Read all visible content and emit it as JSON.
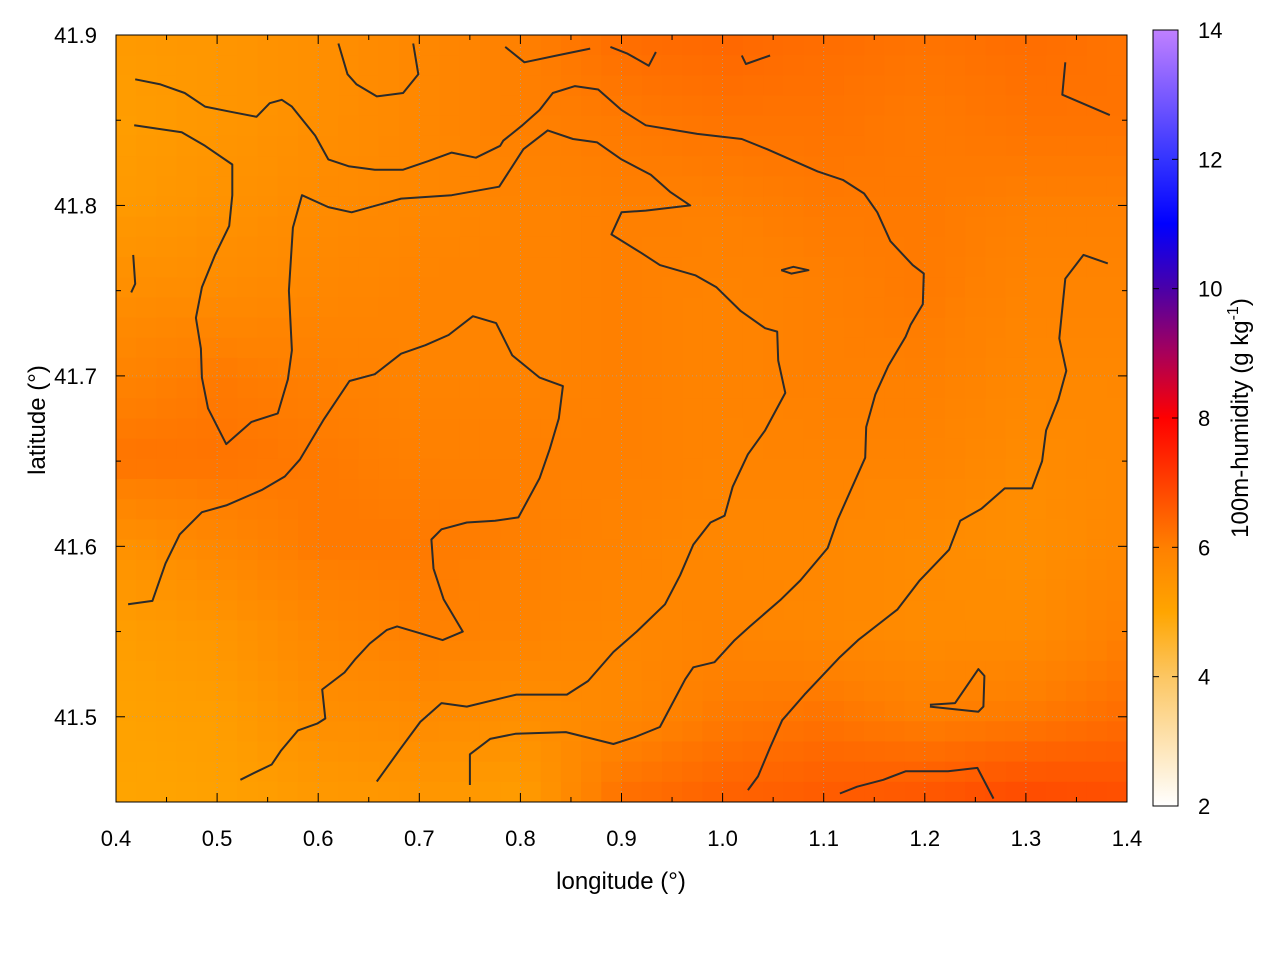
{
  "chart_data": {
    "type": "heatmap",
    "title": "",
    "xlabel": "longitude (°)",
    "ylabel": "latitude (°)",
    "colorbar_label": "100m-humidity (g kg-1)",
    "colorbar_label_main": "100m-humidity (g kg",
    "colorbar_label_sup": "-1",
    "colorbar_label_end": ")",
    "xlim": [
      0.4,
      1.4
    ],
    "ylim": [
      41.45,
      41.9
    ],
    "clim": [
      2,
      14
    ],
    "grid": true,
    "x_ticks": [
      "0.4",
      "0.5",
      "0.6",
      "0.7",
      "0.8",
      "0.9",
      "1.0",
      "1.1",
      "1.2",
      "1.3",
      "1.4"
    ],
    "y_ticks": [
      "41.5",
      "41.6",
      "41.7",
      "41.8",
      "41.9"
    ],
    "colorbar_ticks": [
      "2",
      "4",
      "6",
      "8",
      "10",
      "12",
      "14"
    ],
    "colormap": [
      [
        2,
        "#ffffff"
      ],
      [
        4,
        "#fcc662"
      ],
      [
        5,
        "#ffa500"
      ],
      [
        6,
        "#ff8000"
      ],
      [
        7,
        "#ff4000"
      ],
      [
        8,
        "#ff0000"
      ],
      [
        9,
        "#a8005a"
      ],
      [
        10,
        "#4a00a8"
      ],
      [
        11,
        "#0000ff"
      ],
      [
        12,
        "#3434ff"
      ],
      [
        14,
        "#c080ff"
      ]
    ],
    "grid_lon": [
      0.4,
      0.5,
      0.6,
      0.7,
      0.8,
      0.9,
      1.0,
      1.1,
      1.2,
      1.3,
      1.4
    ],
    "grid_lat": [
      41.9,
      41.85,
      41.8,
      41.75,
      41.7,
      41.65,
      41.6,
      41.55,
      41.5,
      41.45
    ],
    "values": [
      [
        5.3,
        5.4,
        5.6,
        5.8,
        6.0,
        6.3,
        6.4,
        6.3,
        6.2,
        6.3,
        6.2
      ],
      [
        5.2,
        5.4,
        5.6,
        5.8,
        6.0,
        6.1,
        6.2,
        6.2,
        6.1,
        6.2,
        6.2
      ],
      [
        5.3,
        5.5,
        5.7,
        5.8,
        5.9,
        6.0,
        6.0,
        6.1,
        6.1,
        6.0,
        6.0
      ],
      [
        5.6,
        5.7,
        5.8,
        5.9,
        5.9,
        6.0,
        5.9,
        6.0,
        6.1,
        5.9,
        5.9
      ],
      [
        5.9,
        6.1,
        6.0,
        5.9,
        5.9,
        6.0,
        5.9,
        6.0,
        6.0,
        5.8,
        5.8
      ],
      [
        6.2,
        6.2,
        6.1,
        6.0,
        6.0,
        6.0,
        5.9,
        5.9,
        5.9,
        5.7,
        5.8
      ],
      [
        5.5,
        5.8,
        6.1,
        6.1,
        6.0,
        5.9,
        5.8,
        5.8,
        5.7,
        5.6,
        5.8
      ],
      [
        5.2,
        5.4,
        5.8,
        6.0,
        5.9,
        5.8,
        5.9,
        5.8,
        5.7,
        5.7,
        6.0
      ],
      [
        5.1,
        5.2,
        5.6,
        5.7,
        5.6,
        5.8,
        6.1,
        6.2,
        6.0,
        6.1,
        6.3
      ],
      [
        5.0,
        5.1,
        5.3,
        5.4,
        5.2,
        6.3,
        6.5,
        6.6,
        6.7,
        6.9,
        6.8
      ]
    ],
    "contour_color": "#2b2b2b",
    "contours": [
      [
        [
          0.419,
          41.874
        ],
        [
          0.444,
          41.871
        ],
        [
          0.468,
          41.866
        ],
        [
          0.488,
          41.858
        ],
        [
          0.513,
          41.855
        ],
        [
          0.539,
          41.852
        ],
        [
          0.552,
          41.86
        ],
        [
          0.564,
          41.862
        ],
        [
          0.574,
          41.858
        ],
        [
          0.597,
          41.841
        ],
        [
          0.61,
          41.827
        ],
        [
          0.63,
          41.823
        ],
        [
          0.656,
          41.821
        ],
        [
          0.684,
          41.821
        ],
        [
          0.709,
          41.826
        ],
        [
          0.732,
          41.831
        ],
        [
          0.756,
          41.828
        ],
        [
          0.78,
          41.835
        ],
        [
          0.783,
          41.838
        ],
        [
          0.802,
          41.847
        ],
        [
          0.819,
          41.856
        ],
        [
          0.832,
          41.866
        ],
        [
          0.854,
          41.87
        ],
        [
          0.877,
          41.868
        ],
        [
          0.9,
          41.856
        ],
        [
          0.924,
          41.847
        ],
        [
          0.975,
          41.842
        ],
        [
          1.019,
          41.839
        ],
        [
          1.044,
          41.833
        ],
        [
          1.094,
          41.82
        ],
        [
          1.119,
          41.815
        ],
        [
          1.14,
          41.807
        ],
        [
          1.153,
          41.796
        ],
        [
          1.166,
          41.779
        ],
        [
          1.188,
          41.765
        ],
        [
          1.199,
          41.76
        ],
        [
          1.198,
          41.742
        ],
        [
          1.186,
          41.73
        ],
        [
          1.181,
          41.723
        ],
        [
          1.164,
          41.706
        ],
        [
          1.151,
          41.689
        ],
        [
          1.142,
          41.67
        ],
        [
          1.141,
          41.652
        ],
        [
          1.114,
          41.616
        ],
        [
          1.104,
          41.599
        ],
        [
          1.077,
          41.58
        ],
        [
          1.058,
          41.569
        ],
        [
          1.027,
          41.553
        ],
        [
          1.012,
          41.545
        ],
        [
          0.992,
          41.532
        ],
        [
          0.971,
          41.529
        ],
        [
          0.963,
          41.522
        ],
        [
          0.938,
          41.494
        ],
        [
          0.913,
          41.488
        ],
        [
          0.892,
          41.484
        ],
        [
          0.845,
          41.491
        ],
        [
          0.795,
          41.49
        ],
        [
          0.77,
          41.487
        ],
        [
          0.75,
          41.478
        ],
        [
          0.75,
          41.46
        ]
      ],
      [
        [
          0.418,
          41.847
        ],
        [
          0.465,
          41.843
        ],
        [
          0.488,
          41.835
        ],
        [
          0.515,
          41.824
        ],
        [
          0.515,
          41.806
        ],
        [
          0.512,
          41.788
        ],
        [
          0.498,
          41.771
        ],
        [
          0.485,
          41.752
        ],
        [
          0.479,
          41.734
        ],
        [
          0.484,
          41.716
        ],
        [
          0.485,
          41.699
        ],
        [
          0.491,
          41.681
        ],
        [
          0.509,
          41.66
        ],
        [
          0.534,
          41.673
        ],
        [
          0.56,
          41.678
        ],
        [
          0.57,
          41.698
        ],
        [
          0.574,
          41.715
        ],
        [
          0.571,
          41.75
        ],
        [
          0.575,
          41.787
        ],
        [
          0.584,
          41.806
        ],
        [
          0.61,
          41.799
        ],
        [
          0.633,
          41.796
        ],
        [
          0.682,
          41.804
        ],
        [
          0.732,
          41.806
        ],
        [
          0.779,
          41.811
        ],
        [
          0.803,
          41.833
        ],
        [
          0.827,
          41.844
        ],
        [
          0.852,
          41.839
        ],
        [
          0.876,
          41.837
        ],
        [
          0.9,
          41.827
        ],
        [
          0.929,
          41.818
        ],
        [
          0.948,
          41.808
        ],
        [
          0.968,
          41.8
        ],
        [
          0.924,
          41.797
        ],
        [
          0.9,
          41.796
        ],
        [
          0.89,
          41.783
        ],
        [
          0.92,
          41.772
        ],
        [
          0.938,
          41.765
        ],
        [
          0.973,
          41.759
        ],
        [
          0.994,
          41.752
        ],
        [
          1.018,
          41.738
        ],
        [
          1.042,
          41.728
        ],
        [
          1.054,
          41.726
        ],
        [
          1.055,
          41.709
        ],
        [
          1.062,
          41.69
        ],
        [
          1.042,
          41.668
        ],
        [
          1.025,
          41.654
        ],
        [
          1.01,
          41.635
        ],
        [
          1.002,
          41.618
        ],
        [
          0.988,
          41.614
        ],
        [
          0.971,
          41.601
        ],
        [
          0.958,
          41.583
        ],
        [
          0.943,
          41.566
        ],
        [
          0.915,
          41.55
        ],
        [
          0.892,
          41.538
        ],
        [
          0.867,
          41.521
        ],
        [
          0.846,
          41.513
        ],
        [
          0.796,
          41.513
        ],
        [
          0.747,
          41.506
        ],
        [
          0.722,
          41.508
        ],
        [
          0.701,
          41.497
        ],
        [
          0.681,
          41.481
        ],
        [
          0.658,
          41.462
        ]
      ],
      [
        [
          0.412,
          41.566
        ],
        [
          0.436,
          41.568
        ],
        [
          0.449,
          41.59
        ],
        [
          0.463,
          41.607
        ],
        [
          0.485,
          41.62
        ],
        [
          0.509,
          41.624
        ],
        [
          0.544,
          41.633
        ],
        [
          0.567,
          41.641
        ],
        [
          0.582,
          41.651
        ],
        [
          0.605,
          41.674
        ],
        [
          0.631,
          41.697
        ],
        [
          0.656,
          41.701
        ],
        [
          0.682,
          41.713
        ],
        [
          0.706,
          41.718
        ],
        [
          0.729,
          41.724
        ],
        [
          0.753,
          41.735
        ],
        [
          0.776,
          41.731
        ],
        [
          0.792,
          41.712
        ],
        [
          0.819,
          41.699
        ],
        [
          0.842,
          41.694
        ],
        [
          0.838,
          41.675
        ],
        [
          0.829,
          41.657
        ],
        [
          0.819,
          41.64
        ],
        [
          0.798,
          41.617
        ],
        [
          0.775,
          41.615
        ],
        [
          0.747,
          41.614
        ],
        [
          0.722,
          41.61
        ],
        [
          0.712,
          41.604
        ],
        [
          0.714,
          41.587
        ],
        [
          0.724,
          41.569
        ],
        [
          0.743,
          41.55
        ],
        [
          0.723,
          41.545
        ],
        [
          0.701,
          41.549
        ],
        [
          0.678,
          41.553
        ],
        [
          0.668,
          41.551
        ],
        [
          0.651,
          41.543
        ],
        [
          0.637,
          41.534
        ],
        [
          0.626,
          41.526
        ],
        [
          0.604,
          41.516
        ],
        [
          0.607,
          41.499
        ],
        [
          0.599,
          41.496
        ],
        [
          0.58,
          41.492
        ],
        [
          0.563,
          41.48
        ],
        [
          0.554,
          41.472
        ],
        [
          0.54,
          41.468
        ],
        [
          0.523,
          41.463
        ]
      ],
      [
        [
          1.381,
          41.766
        ],
        [
          1.357,
          41.771
        ],
        [
          1.339,
          41.757
        ],
        [
          1.333,
          41.722
        ],
        [
          1.34,
          41.703
        ],
        [
          1.332,
          41.686
        ],
        [
          1.32,
          41.668
        ],
        [
          1.316,
          41.65
        ],
        [
          1.306,
          41.634
        ],
        [
          1.279,
          41.634
        ],
        [
          1.256,
          41.622
        ],
        [
          1.235,
          41.615
        ],
        [
          1.224,
          41.598
        ],
        [
          1.195,
          41.58
        ],
        [
          1.173,
          41.563
        ],
        [
          1.134,
          41.545
        ],
        [
          1.116,
          41.535
        ],
        [
          1.081,
          41.513
        ],
        [
          1.059,
          41.498
        ],
        [
          1.047,
          41.482
        ],
        [
          1.035,
          41.465
        ],
        [
          1.025,
          41.457
        ]
      ],
      [
        [
          1.116,
          41.455
        ],
        [
          1.133,
          41.459
        ],
        [
          1.159,
          41.463
        ],
        [
          1.181,
          41.468
        ],
        [
          1.223,
          41.468
        ],
        [
          1.252,
          41.47
        ],
        [
          1.268,
          41.452
        ]
      ],
      [
        [
          1.205,
          41.507
        ],
        [
          1.23,
          41.508
        ],
        [
          1.253,
          41.528
        ],
        [
          1.259,
          41.524
        ],
        [
          1.258,
          41.506
        ],
        [
          1.253,
          41.503
        ],
        [
          1.205,
          41.506
        ]
      ],
      [
        [
          0.62,
          41.895
        ],
        [
          0.629,
          41.877
        ],
        [
          0.638,
          41.871
        ],
        [
          0.658,
          41.864
        ],
        [
          0.684,
          41.866
        ],
        [
          0.699,
          41.877
        ],
        [
          0.694,
          41.895
        ]
      ],
      [
        [
          0.785,
          41.893
        ],
        [
          0.804,
          41.884
        ],
        [
          0.836,
          41.888
        ],
        [
          0.869,
          41.892
        ]
      ],
      [
        [
          0.889,
          41.893
        ],
        [
          0.906,
          41.889
        ],
        [
          0.927,
          41.882
        ],
        [
          0.934,
          41.89
        ]
      ],
      [
        [
          1.019,
          41.888
        ],
        [
          1.023,
          41.883
        ],
        [
          1.047,
          41.888
        ]
      ],
      [
        [
          1.339,
          41.884
        ],
        [
          1.336,
          41.865
        ],
        [
          1.383,
          41.853
        ]
      ],
      [
        [
          0.417,
          41.771
        ],
        [
          0.419,
          41.754
        ],
        [
          0.415,
          41.749
        ]
      ],
      [
        [
          1.058,
          41.762
        ],
        [
          1.07,
          41.764
        ],
        [
          1.085,
          41.762
        ],
        [
          1.068,
          41.76
        ],
        [
          1.058,
          41.762
        ]
      ]
    ]
  }
}
